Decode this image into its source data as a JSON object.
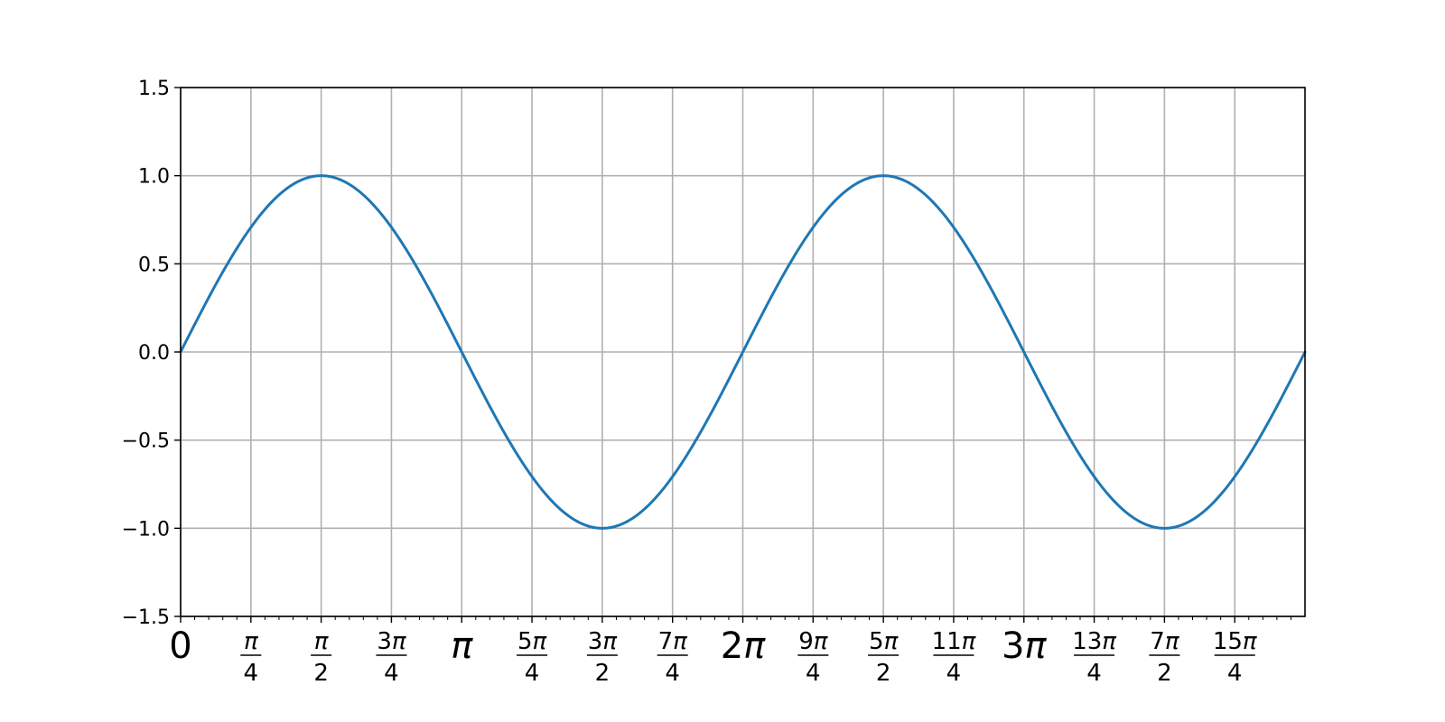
{
  "chart_data": {
    "type": "line",
    "title": "",
    "xlabel": "",
    "ylabel": "",
    "function": "sin(x)",
    "xlim_pi": [
      0,
      4
    ],
    "ylim": [
      -1.5,
      1.5
    ],
    "grid": true,
    "series": [
      {
        "color": "#1f77b4"
      }
    ],
    "y_ticks": [
      {
        "value": 1.5,
        "label": "1.5"
      },
      {
        "value": 1.0,
        "label": "1.0"
      },
      {
        "value": 0.5,
        "label": "0.5"
      },
      {
        "value": 0.0,
        "label": "0.0"
      },
      {
        "value": -0.5,
        "label": "−0.5"
      },
      {
        "value": -1.0,
        "label": "−1.0"
      },
      {
        "value": -1.5,
        "label": "−1.5"
      }
    ],
    "x_ticks": [
      {
        "value_pi": 0,
        "kind": "whole",
        "label": "0"
      },
      {
        "value_pi": 0.25,
        "kind": "frac",
        "num": "π",
        "den": "4"
      },
      {
        "value_pi": 0.5,
        "kind": "frac",
        "num": "π",
        "den": "2"
      },
      {
        "value_pi": 0.75,
        "kind": "frac",
        "num": "3π",
        "den": "4"
      },
      {
        "value_pi": 1,
        "kind": "whole",
        "label": "π",
        "italic": true
      },
      {
        "value_pi": 1.25,
        "kind": "frac",
        "num": "5π",
        "den": "4"
      },
      {
        "value_pi": 1.5,
        "kind": "frac",
        "num": "3π",
        "den": "2"
      },
      {
        "value_pi": 1.75,
        "kind": "frac",
        "num": "7π",
        "den": "4"
      },
      {
        "value_pi": 2,
        "kind": "whole",
        "label": "2π"
      },
      {
        "value_pi": 2.25,
        "kind": "frac",
        "num": "9π",
        "den": "4"
      },
      {
        "value_pi": 2.5,
        "kind": "frac",
        "num": "5π",
        "den": "2"
      },
      {
        "value_pi": 2.75,
        "kind": "frac",
        "num": "11π",
        "den": "4"
      },
      {
        "value_pi": 3,
        "kind": "whole",
        "label": "3π"
      },
      {
        "value_pi": 3.25,
        "kind": "frac",
        "num": "13π",
        "den": "4"
      },
      {
        "value_pi": 3.5,
        "kind": "frac",
        "num": "7π",
        "den": "2"
      },
      {
        "value_pi": 3.75,
        "kind": "frac",
        "num": "15π",
        "den": "4"
      }
    ],
    "minor_ticks_per_major": 5
  }
}
